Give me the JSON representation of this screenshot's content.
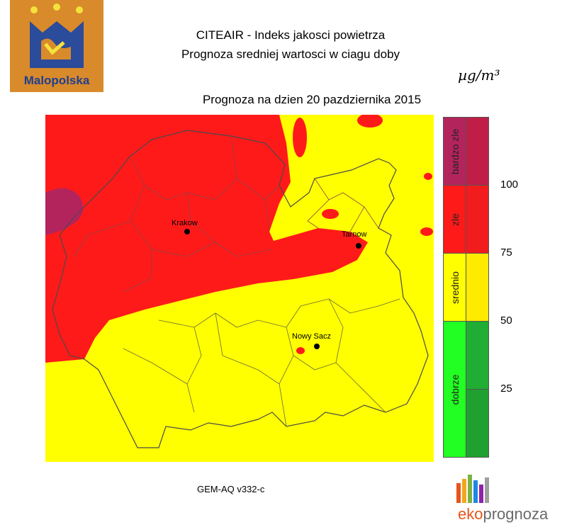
{
  "logo": {
    "name": "Malopolska"
  },
  "header": {
    "title_line1": "CITEAIR - Indeks jakosci powietrza",
    "title_line2": "Prognoza sredniej wartosci w ciagu doby",
    "date_line": "Prognoza na dzien  20 pazdziernika 2015",
    "unit": "µg/m³"
  },
  "map": {
    "cities": [
      {
        "name": "Krakow"
      },
      {
        "name": "Tarnow"
      },
      {
        "name": "Nowy Sacz"
      }
    ]
  },
  "legend": {
    "categories": [
      {
        "label": "bardzo zle",
        "color": "#b4245c",
        "shade": "#c01e48"
      },
      {
        "label": "zle",
        "color": "#ff1a1a",
        "shade": "#f21c1c"
      },
      {
        "label": "srednio",
        "color": "#ffff00",
        "shade": "#ffeb00"
      },
      {
        "label": "dobrze",
        "color": "#22ff22",
        "shade": "#1fae33"
      }
    ],
    "ticks": [
      "100",
      "75",
      "50",
      "25"
    ]
  },
  "footer": {
    "model": "GEM-AQ v332-c",
    "brand_part1": "eko",
    "brand_part2": "prognoza"
  },
  "colors": {
    "yellow": "#ffff00",
    "red": "#ff1a1a",
    "purple": "#b4245c",
    "logo_bg": "#d98a2b",
    "logo_text": "#1f3f8f"
  }
}
